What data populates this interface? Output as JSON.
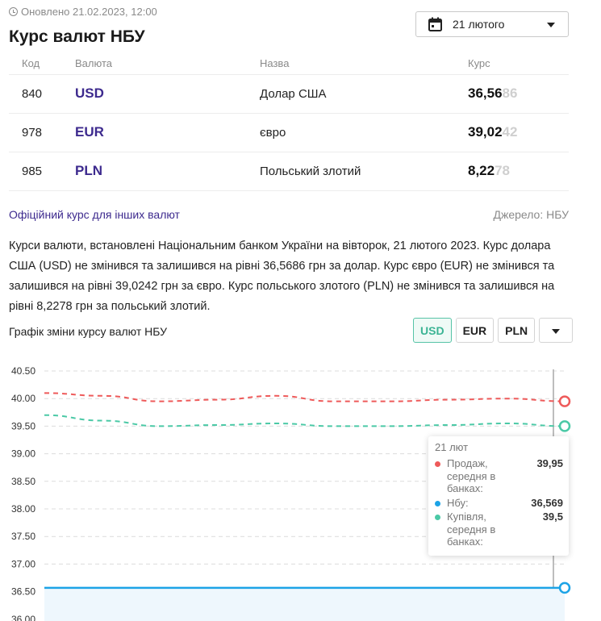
{
  "header": {
    "updated": "Оновлено 21.02.2023, 12:00",
    "title": "Курс валют НБУ",
    "date_label": "21 лютого"
  },
  "table": {
    "columns": [
      "Код",
      "Валюта",
      "Назва",
      "Курс"
    ],
    "rows": [
      {
        "code": "840",
        "currency": "USD",
        "name": "Долар США",
        "rate_main": "36,56",
        "rate_tail": "86"
      },
      {
        "code": "978",
        "currency": "EUR",
        "name": "євро",
        "rate_main": "39,02",
        "rate_tail": "42"
      },
      {
        "code": "985",
        "currency": "PLN",
        "name": "Польський злотий",
        "rate_main": "8,22",
        "rate_tail": "78"
      }
    ]
  },
  "other_link": "Офіційний курс для інших валют",
  "source": "Джерело: НБУ",
  "description": "Курси валюти, встановлені Національним банком України на вівторок, 21 лютого 2023. Курс долара США (USD) не змінився та залишився на рівні 36,5686 грн за долар. Курс євро (EUR) не змінився та залишився на рівні 39,0242 грн за євро. Курс польського злотого (PLN) не змінився та залишився на рівні 8,2278 грн за польський злотий.",
  "chart_section": {
    "title": "Графік зміни курсу валют НБУ",
    "buttons": [
      "USD",
      "EUR",
      "PLN"
    ],
    "active": "USD"
  },
  "tooltip": {
    "date": "21 лют",
    "items": [
      {
        "label": "Продаж, середня в банках:",
        "value": "39,95",
        "color": "#ee5a5a"
      },
      {
        "label": "Нбу:",
        "value": "36,569",
        "color": "#1ca3e6"
      },
      {
        "label": "Купівля, середня в банках:",
        "value": "39,5",
        "color": "#4bc9a6"
      }
    ]
  },
  "chart_data": {
    "type": "line",
    "y_ticks": [
      "40.50",
      "40.00",
      "39.50",
      "39.00",
      "38.50",
      "38.00",
      "37.50",
      "37.00",
      "36.50",
      "36.00"
    ],
    "ylim": [
      36.0,
      40.5
    ],
    "grid": true,
    "series": [
      {
        "name": "Продаж, середня в банках",
        "color": "#ee5a5a",
        "style": "dashed",
        "values": [
          40.1,
          40.05,
          39.95,
          39.98,
          40.05,
          39.95,
          39.95,
          39.98,
          40.0,
          39.95
        ]
      },
      {
        "name": "Купівля, середня в банках",
        "color": "#4bc9a6",
        "style": "dashed",
        "values": [
          39.7,
          39.6,
          39.5,
          39.52,
          39.55,
          39.5,
          39.5,
          39.52,
          39.55,
          39.5
        ]
      },
      {
        "name": "Нбу",
        "color": "#1ca3e6",
        "style": "solid",
        "values": [
          36.5686,
          36.5686,
          36.5686,
          36.5686,
          36.5686,
          36.5686,
          36.5686,
          36.5686,
          36.5686,
          36.5686
        ]
      }
    ]
  }
}
